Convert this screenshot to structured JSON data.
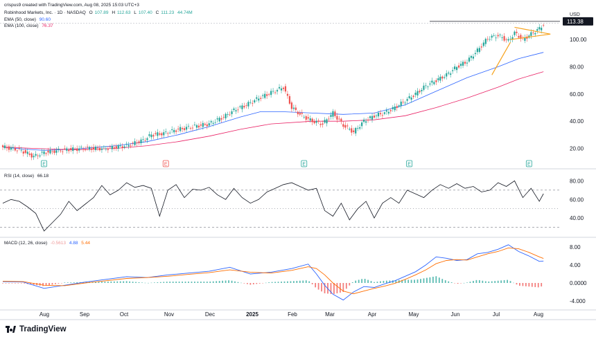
{
  "header": {
    "credit": "crispus9 created with TradingView.com, Aug 08, 2025 15:03 UTC+3",
    "symbol": "Robinhood Markets, Inc. · 1D · NASDAQ",
    "o_label": "O",
    "o": "107.89",
    "h_label": "H",
    "h": "112.63",
    "l_label": "L",
    "l": "107.40",
    "c_label": "C",
    "c": "111.23",
    "vol": "44.74M",
    "ema50_label": "EMA (50, close)",
    "ema50": "90.60",
    "ema100_label": "EMA (100, close)",
    "ema100": "76.37",
    "currency": "USD"
  },
  "colors": {
    "up": "#26a69a",
    "down": "#ef5350",
    "ema50": "#2962ff",
    "ema100": "#e91e63",
    "pattern": "#f7a21b",
    "rsi": "#131722",
    "macd": "#2962ff",
    "signal": "#ff6d00"
  },
  "chart_data": [
    {
      "type": "candlestick",
      "title": "Robinhood Markets, Inc. · 1D · NASDAQ",
      "ylabel": "USD",
      "x_ticks": [
        "Aug",
        "Sep",
        "Oct",
        "Nov",
        "Dec",
        "2025",
        "Feb",
        "Mar",
        "Apr",
        "May",
        "Jun",
        "Jul",
        "Aug"
      ],
      "y_ticks": [
        "20.00",
        "40.00",
        "60.00",
        "80.00",
        "100.00"
      ],
      "last_price": "113.38",
      "ylim": [
        5,
        125
      ],
      "series": [
        {
          "name": "EMA (50, close)",
          "x": [
            0,
            10,
            20,
            35,
            55,
            70,
            85,
            100,
            115,
            125,
            135,
            150,
            165,
            180,
            195,
            210,
            225,
            240,
            250,
            262
          ],
          "values": [
            21,
            19.5,
            18.5,
            19.5,
            22,
            25,
            30,
            36,
            43,
            47,
            47,
            46,
            45,
            46,
            52,
            62,
            72,
            80,
            86,
            90.6
          ]
        },
        {
          "name": "EMA (100, close)",
          "x": [
            0,
            15,
            35,
            55,
            70,
            85,
            100,
            115,
            130,
            150,
            165,
            180,
            195,
            210,
            225,
            240,
            250,
            262
          ],
          "values": [
            21,
            20,
            19,
            20,
            22,
            25,
            29,
            34,
            38,
            40,
            40,
            41,
            44,
            50,
            57,
            65,
            71,
            76.4
          ]
        }
      ],
      "price_path": {
        "x": [
          0,
          8,
          15,
          20,
          30,
          40,
          50,
          60,
          68,
          72,
          78,
          85,
          92,
          100,
          108,
          112,
          118,
          124,
          130,
          136,
          140,
          145,
          150,
          155,
          160,
          165,
          170,
          175,
          180,
          185,
          190,
          195,
          200,
          205,
          210,
          215,
          220,
          225,
          230,
          235,
          240,
          245,
          248,
          252,
          256,
          260,
          262
        ],
        "values": [
          21,
          19,
          14,
          17,
          19,
          20,
          20,
          22,
          26,
          30,
          31,
          34,
          36,
          38,
          44,
          48,
          52,
          57,
          61,
          65,
          50,
          44,
          40,
          38,
          46,
          37,
          32,
          40,
          44,
          46,
          50,
          55,
          60,
          66,
          70,
          74,
          80,
          84,
          92,
          101,
          103,
          99,
          105,
          100,
          104,
          108,
          111.23
        ]
      },
      "annotations": {
        "triangle_upper": [
          [
            248,
            109
          ],
          [
            262,
            104
          ]
        ],
        "triangle_lower": [
          [
            246,
            100
          ],
          [
            262,
            104
          ]
        ],
        "pole": [
          [
            237,
            74
          ],
          [
            246,
            98
          ]
        ],
        "horizontal_line": 113.38
      },
      "event_markers": [
        {
          "x": 20,
          "label": "E",
          "kind": "up"
        },
        {
          "x": 79,
          "label": "E",
          "kind": "down"
        },
        {
          "x": 146,
          "label": "E",
          "kind": "up"
        },
        {
          "x": 197,
          "label": "E",
          "kind": "up"
        },
        {
          "x": 255,
          "label": "E",
          "kind": "up"
        }
      ]
    },
    {
      "type": "line",
      "title": "RSI (14, close)",
      "value": "66.18",
      "y_ticks": [
        "40.00",
        "60.00",
        "80.00"
      ],
      "ylim": [
        20,
        90
      ],
      "bands": [
        30,
        50,
        70
      ],
      "x": [
        0,
        4,
        8,
        12,
        16,
        20,
        24,
        28,
        32,
        36,
        40,
        44,
        48,
        52,
        56,
        60,
        64,
        68,
        72,
        76,
        80,
        84,
        88,
        92,
        96,
        100,
        104,
        108,
        112,
        116,
        120,
        124,
        128,
        132,
        136,
        140,
        144,
        148,
        152,
        156,
        160,
        164,
        168,
        172,
        176,
        180,
        184,
        188,
        192,
        196,
        200,
        204,
        208,
        212,
        216,
        220,
        224,
        228,
        232,
        236,
        240,
        244,
        248,
        252,
        256,
        260,
        262
      ],
      "values": [
        56,
        60,
        58,
        52,
        45,
        26,
        35,
        44,
        58,
        48,
        55,
        62,
        75,
        65,
        70,
        78,
        73,
        75,
        72,
        42,
        70,
        76,
        62,
        71,
        70,
        73,
        65,
        60,
        72,
        62,
        56,
        60,
        68,
        72,
        76,
        78,
        74,
        70,
        72,
        48,
        42,
        56,
        38,
        50,
        58,
        40,
        56,
        62,
        56,
        70,
        66,
        62,
        70,
        76,
        72,
        77,
        72,
        74,
        68,
        70,
        78,
        74,
        80,
        62,
        72,
        58,
        66.18
      ]
    },
    {
      "type": "line",
      "title": "MACD (12, 26, close)",
      "values_readout": [
        "-0.5613",
        "4.88",
        "5.44"
      ],
      "y_ticks": [
        "-4.000",
        "0.0000",
        "4.00",
        "8.00"
      ],
      "ylim": [
        -6,
        10
      ],
      "series": [
        {
          "name": "MACD",
          "x": [
            0,
            10,
            20,
            30,
            40,
            50,
            60,
            70,
            80,
            90,
            100,
            110,
            120,
            130,
            140,
            148,
            152,
            156,
            160,
            165,
            170,
            175,
            180,
            185,
            190,
            195,
            200,
            205,
            210,
            215,
            220,
            225,
            230,
            235,
            240,
            245,
            250,
            255,
            260,
            262
          ],
          "values": [
            0.3,
            0.2,
            -1.2,
            -0.5,
            0.2,
            0.8,
            1.4,
            1.2,
            1.8,
            2.2,
            2.6,
            3.5,
            2.0,
            2.4,
            3.2,
            4.2,
            2.0,
            -0.5,
            -2.5,
            -3.8,
            -2.0,
            -0.8,
            -1.0,
            -0.2,
            0.5,
            1.5,
            2.5,
            4.0,
            5.8,
            5.5,
            5.0,
            5.2,
            6.5,
            6.8,
            7.5,
            8.5,
            7.0,
            6.0,
            4.8,
            4.88
          ]
        },
        {
          "name": "Signal",
          "x": [
            0,
            10,
            20,
            30,
            40,
            50,
            60,
            70,
            80,
            90,
            100,
            110,
            120,
            130,
            140,
            148,
            152,
            156,
            160,
            165,
            170,
            175,
            180,
            185,
            190,
            195,
            200,
            205,
            210,
            215,
            220,
            225,
            230,
            235,
            240,
            245,
            250,
            255,
            260,
            262
          ],
          "values": [
            0.4,
            0.3,
            -0.5,
            -0.6,
            0.0,
            0.5,
            1.0,
            1.2,
            1.5,
            1.9,
            2.3,
            2.9,
            2.4,
            2.2,
            2.8,
            3.6,
            3.2,
            1.8,
            0.0,
            -1.8,
            -2.4,
            -1.8,
            -1.2,
            -0.7,
            -0.1,
            0.8,
            1.8,
            2.9,
            4.3,
            5.0,
            5.2,
            5.1,
            5.8,
            6.5,
            7.0,
            7.8,
            7.6,
            6.8,
            5.8,
            5.44
          ]
        }
      ]
    }
  ]
}
